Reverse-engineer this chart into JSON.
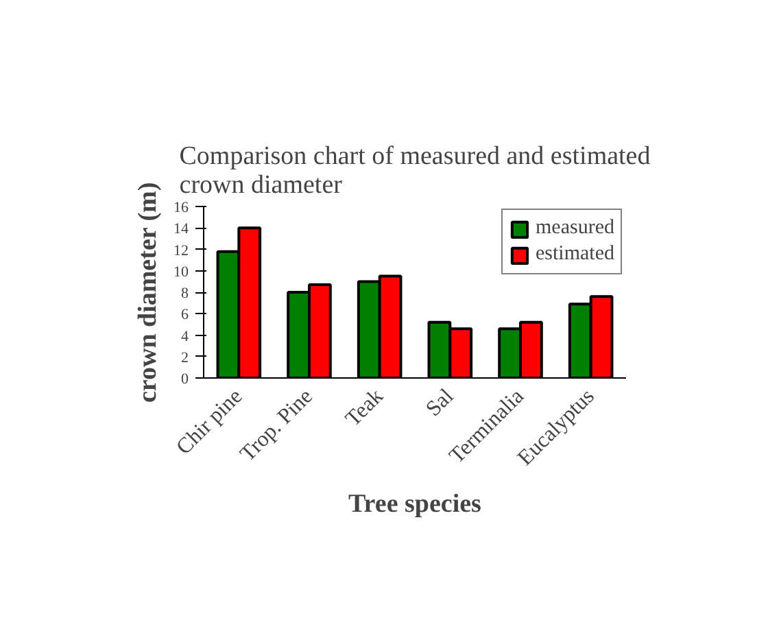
{
  "chart_data": {
    "type": "bar",
    "title": "Comparison chart of measured and estimated crown diameter",
    "xlabel": "Tree species",
    "ylabel": "crown diameter (m)",
    "categories": [
      "Chir pine",
      "Trop. Pine",
      "Teak",
      "Sal",
      "Terminalia",
      "Eucalyptus"
    ],
    "series": [
      {
        "name": "measured",
        "color": "#008000",
        "values": [
          11.8,
          8.0,
          9.0,
          5.2,
          4.6,
          6.9
        ]
      },
      {
        "name": "estimated",
        "color": "#ff0000",
        "values": [
          14.0,
          8.7,
          9.5,
          4.6,
          5.2,
          7.6
        ]
      }
    ],
    "ylim": [
      0,
      16
    ],
    "yticks": [
      0,
      2,
      4,
      6,
      8,
      10,
      12,
      14,
      16
    ],
    "grid": false,
    "legend": "top right"
  }
}
